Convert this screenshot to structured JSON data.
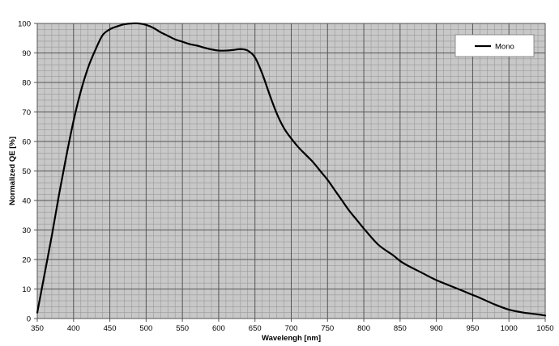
{
  "chart_data": {
    "type": "line",
    "xlabel": "Wavelengh [nm]",
    "ylabel": "Normalized QE [%]",
    "xlim": [
      350,
      1050
    ],
    "ylim": [
      0,
      100
    ],
    "x_ticks": [
      350,
      400,
      450,
      500,
      550,
      600,
      650,
      700,
      750,
      800,
      850,
      900,
      950,
      1000,
      1050
    ],
    "y_ticks": [
      0,
      10,
      20,
      30,
      40,
      50,
      60,
      70,
      80,
      90,
      100
    ],
    "grid": true,
    "legend_position": "top-right",
    "series": [
      {
        "name": "Mono",
        "color": "#000000",
        "x": [
          350,
          360,
          370,
          380,
          390,
          400,
          410,
          420,
          430,
          440,
          450,
          460,
          470,
          480,
          490,
          500,
          510,
          520,
          530,
          540,
          550,
          560,
          570,
          580,
          590,
          600,
          610,
          620,
          630,
          640,
          650,
          660,
          670,
          680,
          690,
          700,
          710,
          720,
          730,
          740,
          750,
          760,
          770,
          780,
          790,
          800,
          820,
          840,
          850,
          860,
          880,
          900,
          920,
          940,
          950,
          960,
          980,
          1000,
          1020,
          1040,
          1050
        ],
        "y": [
          2,
          15,
          28,
          42,
          55,
          67,
          77,
          85,
          91,
          96,
          98,
          99,
          99.7,
          100,
          100,
          99.5,
          98.5,
          97,
          95.8,
          94.6,
          93.8,
          93,
          92.5,
          91.8,
          91.2,
          90.8,
          90.8,
          91,
          91.3,
          90.8,
          88.5,
          83,
          76,
          69.5,
          64.5,
          61,
          58,
          55.5,
          53,
          50,
          47,
          43.5,
          40,
          36.5,
          33.5,
          30.5,
          25,
          21.5,
          19.5,
          18,
          15.5,
          13,
          11,
          9,
          8,
          7,
          4.8,
          3,
          2,
          1.4,
          1
        ]
      }
    ]
  }
}
